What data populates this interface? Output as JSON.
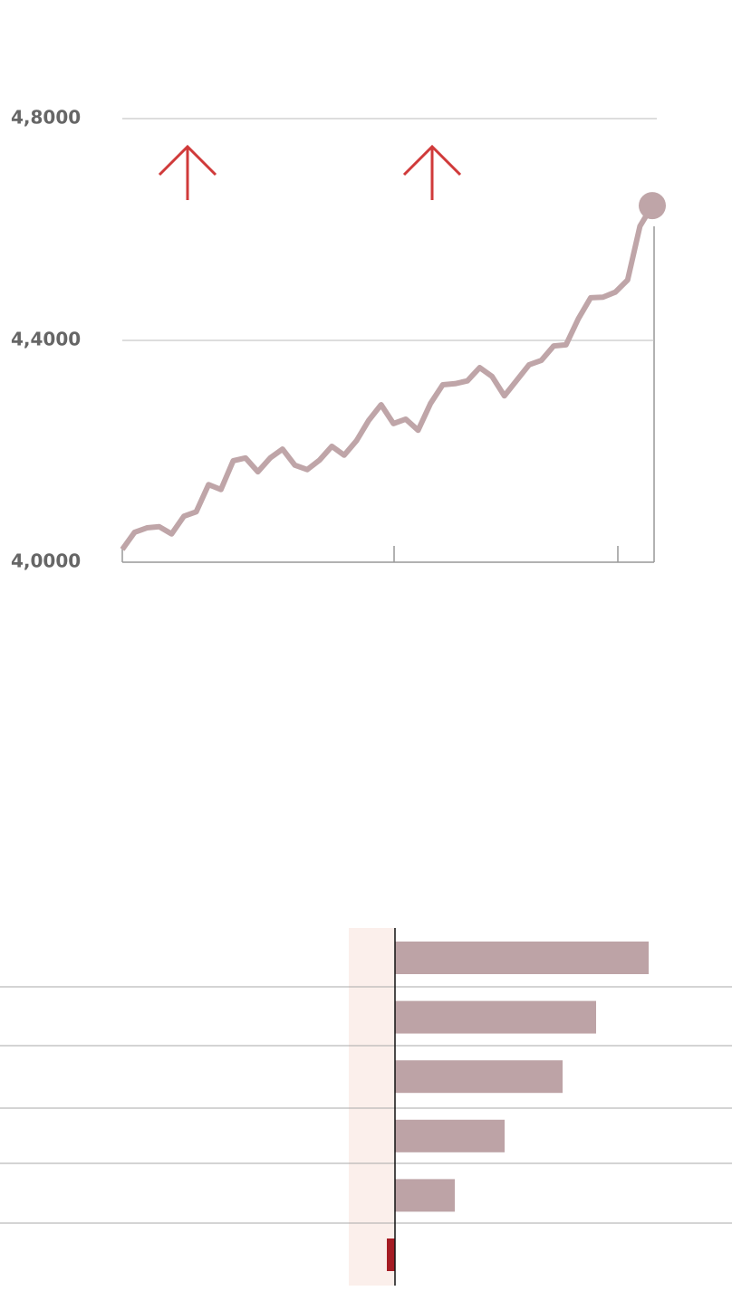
{
  "chart_data": [
    {
      "type": "line",
      "categories": [
        null,
        null,
        null,
        null,
        null,
        null,
        null,
        null,
        null,
        null,
        null,
        null,
        null,
        null,
        null,
        null,
        null,
        null,
        null,
        null,
        null,
        null,
        null,
        null,
        null,
        null,
        null,
        null,
        null,
        null,
        null,
        null,
        null,
        null,
        null,
        null,
        null,
        null,
        null,
        null,
        null,
        null,
        null,
        null
      ],
      "series": [
        {
          "color": "#bfa5a8",
          "values": [
            4.023,
            4.054,
            4.062,
            4.064,
            4.051,
            4.083,
            4.091,
            4.14,
            4.131,
            4.183,
            4.188,
            4.163,
            4.188,
            4.204,
            4.175,
            4.167,
            4.184,
            4.209,
            4.193,
            4.219,
            4.256,
            4.284,
            4.25,
            4.258,
            4.238,
            4.286,
            4.32,
            4.322,
            4.327,
            4.351,
            4.335,
            4.3,
            4.328,
            4.356,
            4.364,
            4.39,
            4.392,
            4.439,
            4.477,
            4.478,
            4.487,
            4.509,
            4.606,
            4.643
          ]
        }
      ],
      "ylim": [
        4.0,
        4.8
      ],
      "yticks": [
        {
          "value": 4.8,
          "label": "4,8000"
        },
        {
          "value": 4.4,
          "label": "4,4000"
        },
        {
          "value": 4.0,
          "label": "4,0000"
        }
      ],
      "grid": true
    },
    {
      "type": "hbar",
      "categories": [
        null,
        null,
        null,
        null,
        null,
        null
      ],
      "values": [
        28,
        22.2,
        18.5,
        12.1,
        6.6,
        -0.9
      ],
      "color": "#bda3a6",
      "negative_color": "#a51c24",
      "xlim": [
        -43.6,
        37.2
      ]
    }
  ]
}
